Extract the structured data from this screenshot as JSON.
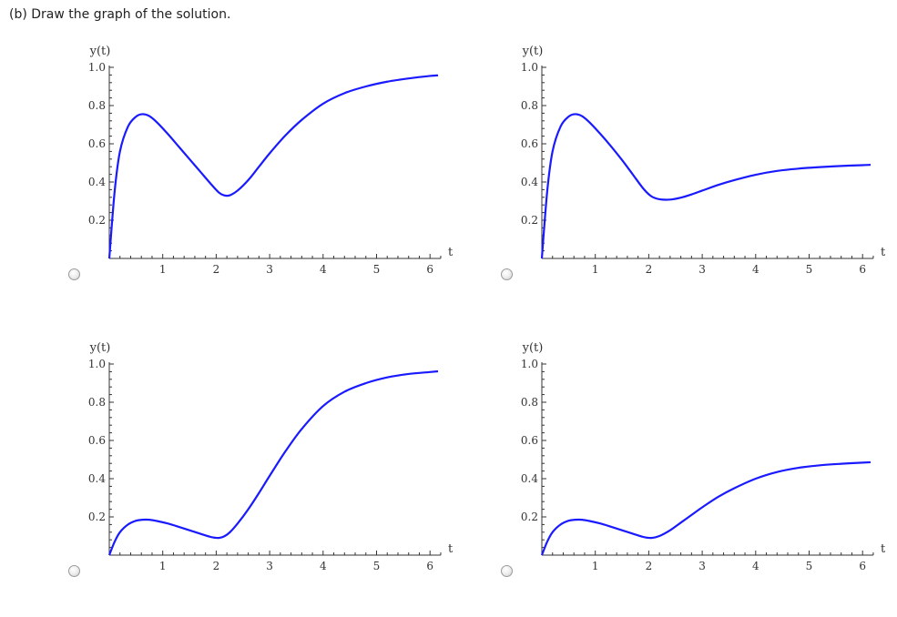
{
  "question": "(b) Draw the graph of the solution.",
  "colors": {
    "curve": "#1a1aff",
    "axis": "#333333"
  },
  "chart_data": [
    {
      "type": "line",
      "title": "",
      "xlabel": "t",
      "ylabel": "y(t)",
      "xlim": [
        0,
        6.2
      ],
      "ylim": [
        0,
        1.0
      ],
      "xticks": [
        "1",
        "2",
        "3",
        "4",
        "5",
        "6"
      ],
      "yticks": [
        "0.2",
        "0.4",
        "0.6",
        "0.8",
        "1.0"
      ],
      "series": [
        {
          "x": [
            0,
            0.1,
            0.2,
            0.35,
            0.5,
            0.62,
            0.75,
            0.9,
            1.1,
            1.3,
            1.5,
            1.7,
            1.9,
            2.05,
            2.15,
            2.25,
            2.4,
            2.6,
            2.8,
            3.0,
            3.3,
            3.6,
            4.0,
            4.4,
            4.8,
            5.2,
            5.6,
            6.0,
            6.15
          ],
          "y": [
            0,
            0.35,
            0.56,
            0.69,
            0.742,
            0.755,
            0.745,
            0.71,
            0.65,
            0.585,
            0.52,
            0.455,
            0.39,
            0.345,
            0.33,
            0.33,
            0.355,
            0.41,
            0.48,
            0.55,
            0.645,
            0.725,
            0.81,
            0.865,
            0.9,
            0.925,
            0.942,
            0.955,
            0.958
          ]
        }
      ]
    },
    {
      "type": "line",
      "title": "",
      "xlabel": "t",
      "ylabel": "y(t)",
      "xlim": [
        0,
        6.2
      ],
      "ylim": [
        0,
        1.0
      ],
      "xticks": [
        "1",
        "2",
        "3",
        "4",
        "5",
        "6"
      ],
      "yticks": [
        "0.2",
        "0.4",
        "0.6",
        "0.8",
        "1.0"
      ],
      "series": [
        {
          "x": [
            0,
            0.1,
            0.2,
            0.35,
            0.5,
            0.62,
            0.75,
            0.9,
            1.1,
            1.3,
            1.5,
            1.7,
            1.9,
            2.05,
            2.2,
            2.4,
            2.6,
            2.8,
            3.0,
            3.3,
            3.6,
            4.0,
            4.4,
            4.8,
            5.2,
            5.6,
            6.0,
            6.15
          ],
          "y": [
            0,
            0.35,
            0.56,
            0.69,
            0.742,
            0.755,
            0.745,
            0.71,
            0.65,
            0.585,
            0.515,
            0.44,
            0.365,
            0.325,
            0.31,
            0.308,
            0.318,
            0.335,
            0.355,
            0.385,
            0.41,
            0.438,
            0.458,
            0.47,
            0.478,
            0.484,
            0.488,
            0.49
          ]
        }
      ]
    },
    {
      "type": "line",
      "title": "",
      "xlabel": "t",
      "ylabel": "y(t)",
      "xlim": [
        0,
        6.2
      ],
      "ylim": [
        0,
        1.0
      ],
      "xticks": [
        "1",
        "2",
        "3",
        "4",
        "5",
        "6"
      ],
      "yticks": [
        "0.2",
        "0.4",
        "0.6",
        "0.8",
        "1.0"
      ],
      "series": [
        {
          "x": [
            0,
            0.1,
            0.2,
            0.35,
            0.5,
            0.62,
            0.75,
            0.9,
            1.1,
            1.3,
            1.5,
            1.7,
            1.9,
            2.05,
            2.15,
            2.25,
            2.4,
            2.6,
            2.8,
            3.0,
            3.3,
            3.6,
            4.0,
            4.4,
            4.8,
            5.2,
            5.6,
            6.0,
            6.15
          ],
          "y": [
            0,
            0.07,
            0.12,
            0.16,
            0.18,
            0.185,
            0.185,
            0.178,
            0.165,
            0.148,
            0.13,
            0.112,
            0.095,
            0.09,
            0.098,
            0.118,
            0.165,
            0.24,
            0.325,
            0.415,
            0.545,
            0.66,
            0.78,
            0.855,
            0.9,
            0.93,
            0.948,
            0.958,
            0.962
          ]
        }
      ]
    },
    {
      "type": "line",
      "title": "",
      "xlabel": "t",
      "ylabel": "y(t)",
      "xlim": [
        0,
        6.2
      ],
      "ylim": [
        0,
        1.0
      ],
      "xticks": [
        "1",
        "2",
        "3",
        "4",
        "5",
        "6"
      ],
      "yticks": [
        "0.2",
        "0.4",
        "0.6",
        "0.8",
        "1.0"
      ],
      "series": [
        {
          "x": [
            0,
            0.1,
            0.2,
            0.35,
            0.5,
            0.62,
            0.75,
            0.9,
            1.1,
            1.3,
            1.5,
            1.7,
            1.9,
            2.05,
            2.2,
            2.4,
            2.6,
            2.8,
            3.0,
            3.3,
            3.6,
            4.0,
            4.4,
            4.8,
            5.2,
            5.6,
            6.0,
            6.15
          ],
          "y": [
            0,
            0.07,
            0.12,
            0.16,
            0.18,
            0.185,
            0.185,
            0.178,
            0.165,
            0.148,
            0.13,
            0.112,
            0.095,
            0.09,
            0.1,
            0.13,
            0.17,
            0.21,
            0.25,
            0.305,
            0.35,
            0.4,
            0.435,
            0.457,
            0.47,
            0.478,
            0.484,
            0.486
          ]
        }
      ]
    }
  ]
}
